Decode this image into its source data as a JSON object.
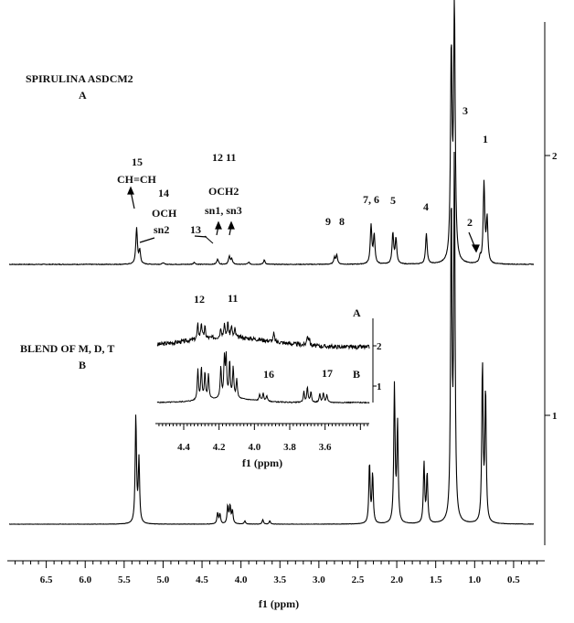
{
  "chart_data": {
    "type": "line",
    "xlabel": "f1 (ppm)",
    "xlim": [
      7.0,
      0.1
    ],
    "x_ticks": [
      "6.5",
      "6.0",
      "5.5",
      "5.0",
      "4.5",
      "4.0",
      "3.5",
      "3.0",
      "2.5",
      "2.0",
      "1.5",
      "1.0",
      "0.5"
    ],
    "x_tick_values": [
      6.5,
      6.0,
      5.5,
      5.0,
      4.5,
      4.0,
      3.5,
      3.0,
      2.5,
      2.0,
      1.5,
      1.0,
      0.5
    ],
    "y_ticks": [
      "2",
      "1"
    ],
    "spectra": [
      {
        "name": "SPIRULINA ASDCM2",
        "sub": "A",
        "tick": "2",
        "peaks": [
          {
            "x": 5.34,
            "h": 0.33
          },
          {
            "x": 5.3,
            "h": 0.12
          },
          {
            "x": 4.3,
            "h": 0.05
          },
          {
            "x": 4.15,
            "h": 0.07
          },
          {
            "x": 4.12,
            "h": 0.05
          },
          {
            "x": 3.9,
            "h": 0.02
          },
          {
            "x": 3.7,
            "h": 0.04
          },
          {
            "x": 2.77,
            "h": 0.08
          },
          {
            "x": 2.8,
            "h": 0.06
          },
          {
            "x": 2.33,
            "h": 0.35
          },
          {
            "x": 2.29,
            "h": 0.26
          },
          {
            "x": 2.05,
            "h": 0.28
          },
          {
            "x": 2.01,
            "h": 0.23
          },
          {
            "x": 1.62,
            "h": 0.28
          },
          {
            "x": 1.3,
            "h": 1.9
          },
          {
            "x": 1.26,
            "h": 2.3
          },
          {
            "x": 0.93,
            "h": 0.05
          },
          {
            "x": 0.88,
            "h": 0.73
          },
          {
            "x": 0.84,
            "h": 0.4
          }
        ]
      },
      {
        "name": "BLEND OF M, D, T",
        "sub": "B",
        "tick": "1",
        "peaks": [
          {
            "x": 5.35,
            "h": 0.98
          },
          {
            "x": 5.31,
            "h": 0.58
          },
          {
            "x": 4.3,
            "h": 0.1
          },
          {
            "x": 4.27,
            "h": 0.09
          },
          {
            "x": 4.17,
            "h": 0.16
          },
          {
            "x": 4.14,
            "h": 0.16
          },
          {
            "x": 4.11,
            "h": 0.12
          },
          {
            "x": 3.95,
            "h": 0.03
          },
          {
            "x": 3.72,
            "h": 0.04
          },
          {
            "x": 3.63,
            "h": 0.03
          },
          {
            "x": 2.35,
            "h": 0.55
          },
          {
            "x": 2.31,
            "h": 0.45
          },
          {
            "x": 2.03,
            "h": 1.25
          },
          {
            "x": 1.99,
            "h": 0.9
          },
          {
            "x": 1.65,
            "h": 0.55
          },
          {
            "x": 1.61,
            "h": 0.45
          },
          {
            "x": 1.3,
            "h": 2.9
          },
          {
            "x": 1.26,
            "h": 3.3
          },
          {
            "x": 0.9,
            "h": 1.45
          },
          {
            "x": 0.86,
            "h": 1.2
          }
        ]
      }
    ],
    "annotations": [
      {
        "text": "15",
        "x": 5.4,
        "spectrum": "A"
      },
      {
        "text": "CH=CH",
        "x": 5.4,
        "spectrum": "A"
      },
      {
        "text": "14",
        "x": 5.2,
        "spectrum": "A"
      },
      {
        "text": "OCH",
        "x": 5.2,
        "spectrum": "A"
      },
      {
        "text": "sn2",
        "x": 5.2,
        "spectrum": "A"
      },
      {
        "text": "13",
        "x": 4.55,
        "spectrum": "A"
      },
      {
        "text": "12 11",
        "x": 4.2,
        "spectrum": "A"
      },
      {
        "text": "OCH2",
        "x": 4.2,
        "spectrum": "A"
      },
      {
        "text": "sn1, sn3",
        "x": 4.2,
        "spectrum": "A"
      },
      {
        "text": "9",
        "x": 2.95,
        "spectrum": "A"
      },
      {
        "text": "8",
        "x": 2.78,
        "spectrum": "A"
      },
      {
        "text": "7, 6",
        "x": 2.32,
        "spectrum": "A"
      },
      {
        "text": "5",
        "x": 2.05,
        "spectrum": "A"
      },
      {
        "text": "4",
        "x": 1.63,
        "spectrum": "A"
      },
      {
        "text": "3",
        "x": 1.1,
        "spectrum": "A"
      },
      {
        "text": "2",
        "x": 0.98,
        "spectrum": "A"
      },
      {
        "text": "1",
        "x": 0.88,
        "spectrum": "A"
      }
    ],
    "inset": {
      "xlabel": "f1 (ppm)",
      "xlim": [
        4.55,
        3.35
      ],
      "x_ticks": [
        "4.4",
        "4.2",
        "4.0",
        "3.8",
        "3.6"
      ],
      "x_tick_values": [
        4.4,
        4.2,
        4.0,
        3.8,
        3.6
      ],
      "y_ticks": [
        "2",
        "1"
      ],
      "labels": [
        {
          "text": "12",
          "x": 4.31
        },
        {
          "text": "11",
          "x": 4.15
        },
        {
          "text": "16",
          "x": 3.97
        },
        {
          "text": "17",
          "x": 3.69
        },
        {
          "text": "A",
          "x": 3.42
        },
        {
          "text": "B",
          "x": 3.42
        }
      ]
    }
  }
}
